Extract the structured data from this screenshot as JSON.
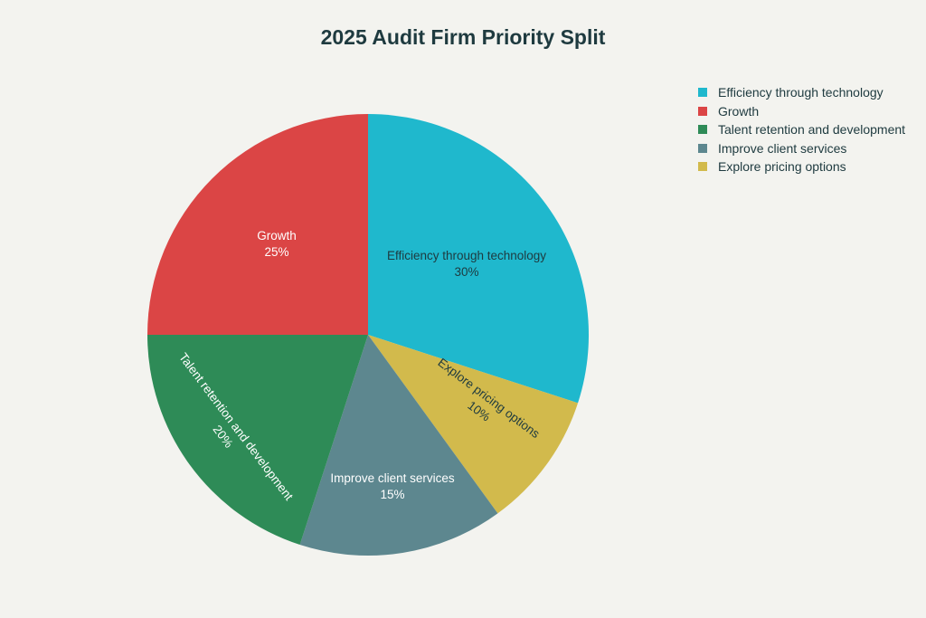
{
  "chart_data": {
    "type": "pie",
    "title": "2025 Audit Firm Priority Split",
    "slices": [
      {
        "label": "Efficiency through technology",
        "value": 30,
        "pct_label": "30%",
        "color": "#1FB8CD",
        "text_color": "#1e3a3f"
      },
      {
        "label": "Explore pricing options",
        "value": 10,
        "pct_label": "10%",
        "color": "#D2BA4C",
        "text_color": "#1e3a3f"
      },
      {
        "label": "Improve client services",
        "value": 15,
        "pct_label": "15%",
        "color": "#5D878F",
        "text_color": "#ffffff"
      },
      {
        "label": "Talent retention and development",
        "value": 20,
        "pct_label": "20%",
        "color": "#2E8B57",
        "text_color": "#ffffff"
      },
      {
        "label": "Growth",
        "value": 25,
        "pct_label": "25%",
        "color": "#DB4545",
        "text_color": "#ffffff"
      }
    ],
    "legend": {
      "placement": "top-right",
      "order": [
        "Efficiency through technology",
        "Growth",
        "Talent retention and development",
        "Improve client services",
        "Explore pricing options"
      ]
    }
  }
}
